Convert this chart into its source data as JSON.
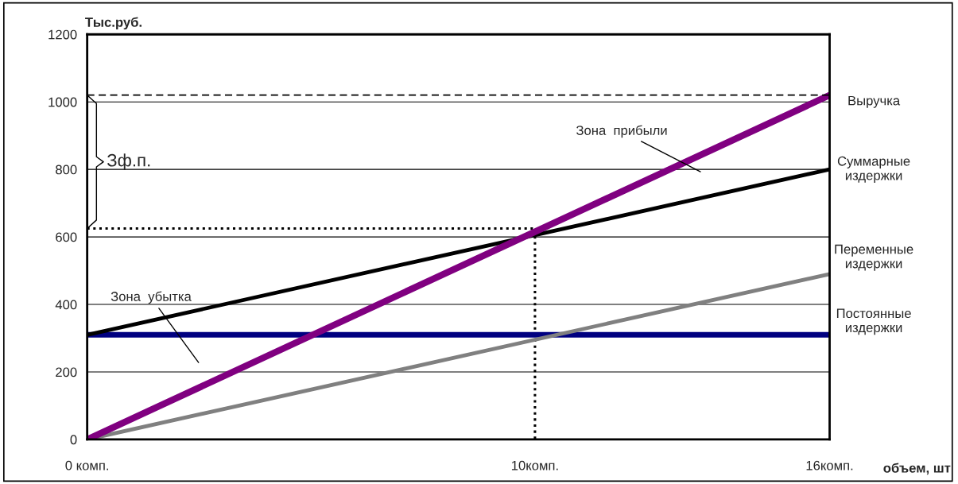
{
  "chart_data": {
    "type": "line",
    "ylabel": "Тыс.руб.",
    "xlabel": "объем, шт",
    "xlim": [
      0,
      16
    ],
    "xticks": [
      {
        "value": 0,
        "label": "0 комп."
      },
      {
        "value": 9.65,
        "label": "10комп."
      },
      {
        "value": 16,
        "label": "16комп."
      }
    ],
    "ylim": [
      0,
      1200
    ],
    "yticks": [
      0,
      200,
      400,
      600,
      800,
      1000,
      1200
    ],
    "grid": "y",
    "marker": "none",
    "legend": false,
    "series": [
      {
        "name": "Выручка",
        "color": "#800080",
        "x": [
          0,
          16
        ],
        "values": [
          0,
          1020
        ],
        "line_style": "solid"
      },
      {
        "name": "Суммарные\nиздержки",
        "color": "#000000",
        "x": [
          0,
          16
        ],
        "values": [
          310,
          800
        ],
        "line_style": "solid"
      },
      {
        "name": "Переменные\nиздержки",
        "color": "#808080",
        "x": [
          0,
          16
        ],
        "values": [
          0,
          490
        ],
        "line_style": "solid"
      },
      {
        "name": "Постоянные\nиздержки",
        "color": "#000080",
        "x": [
          0,
          16
        ],
        "values": [
          310,
          310
        ],
        "line_style": "solid"
      },
      {
        "color": "#000000",
        "x": [
          0,
          9.65,
          9.65
        ],
        "values": [
          625,
          625,
          0
        ],
        "line_style": "dotted"
      }
    ],
    "ref_lines": [
      {
        "axis": "y",
        "value": 1020,
        "line_style": "dashed",
        "color": "#000000"
      }
    ],
    "annotations": [
      "Зона  прибыли",
      "Зона  убытка",
      "Зф.п."
    ]
  }
}
